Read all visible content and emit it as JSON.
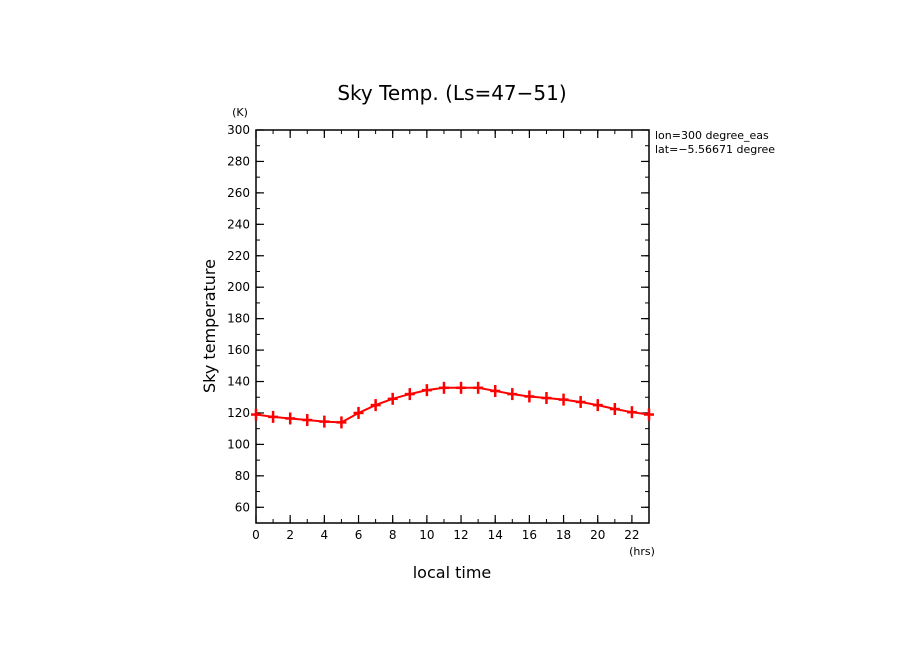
{
  "chart_data": {
    "type": "line",
    "title": "Sky Temp. (Ls=47−51)",
    "xlabel": "local time",
    "ylabel": "Sky temperature",
    "x_unit": "(hrs)",
    "y_unit": "(K)",
    "xlim": [
      0,
      23
    ],
    "ylim": [
      50,
      300
    ],
    "x_ticks": [
      0,
      2,
      4,
      6,
      8,
      10,
      12,
      14,
      16,
      18,
      20,
      22
    ],
    "y_ticks": [
      60,
      80,
      100,
      120,
      140,
      160,
      180,
      200,
      220,
      240,
      260,
      280,
      300
    ],
    "annotations": [
      "lon=300 degree_eas",
      "lat=−5.56671 degree"
    ],
    "grid": false,
    "color": "#ff0000",
    "series": [
      {
        "x": [
          0,
          1,
          2,
          3,
          4,
          5,
          6,
          7,
          8,
          9,
          10,
          11,
          12,
          13,
          14,
          15,
          16,
          17,
          18,
          19,
          20,
          21,
          22,
          23
        ],
        "values": [
          119,
          117.5,
          116.5,
          115.5,
          114.5,
          114,
          120,
          125,
          129,
          132,
          134.5,
          136,
          136,
          136,
          134,
          132,
          130.5,
          129.5,
          128.5,
          127,
          125,
          122.5,
          120.5,
          119
        ]
      }
    ]
  }
}
